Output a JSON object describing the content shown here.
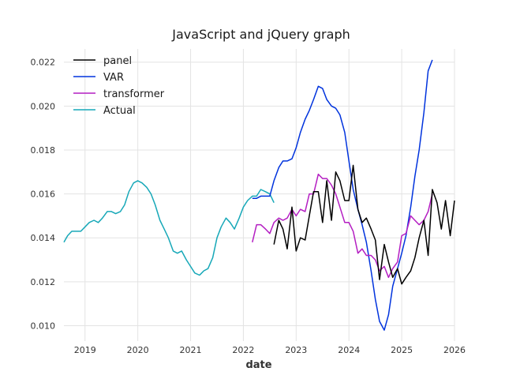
{
  "chart_data": {
    "type": "line",
    "title": "JavaScript and jQuery graph",
    "xlabel": "date",
    "ylabel": "",
    "xlim": [
      2018.6,
      2026.0
    ],
    "ylim": [
      0.0093,
      0.0226
    ],
    "x_ticks": [
      2019,
      2020,
      2021,
      2022,
      2023,
      2024,
      2025,
      2026
    ],
    "x_tick_labels": [
      "2019",
      "2020",
      "2021",
      "2022",
      "2023",
      "2024",
      "2025",
      "2026"
    ],
    "y_ticks": [
      0.01,
      0.012,
      0.014,
      0.016,
      0.018,
      0.02,
      0.022
    ],
    "y_tick_labels": [
      "0.010",
      "0.012",
      "0.014",
      "0.016",
      "0.018",
      "0.020",
      "0.022"
    ],
    "grid": true,
    "legend_position": "top-left",
    "series": [
      {
        "name": "panel",
        "color": "#000000",
        "x": [
          2022.58,
          2022.67,
          2022.75,
          2022.83,
          2022.92,
          2023.0,
          2023.08,
          2023.17,
          2023.25,
          2023.33,
          2023.42,
          2023.5,
          2023.58,
          2023.67,
          2023.75,
          2023.83,
          2023.92,
          2024.0,
          2024.08,
          2024.17,
          2024.25,
          2024.33,
          2024.42,
          2024.5,
          2024.58,
          2024.67,
          2024.75,
          2024.83,
          2024.92,
          2025.0,
          2025.08,
          2025.17,
          2025.25,
          2025.33,
          2025.42,
          2025.5,
          2025.58,
          2025.67,
          2025.75,
          2025.83,
          2025.92,
          2026.0
        ],
        "y": [
          0.0137,
          0.0148,
          0.0144,
          0.0135,
          0.0154,
          0.0134,
          0.014,
          0.0139,
          0.015,
          0.0161,
          0.0161,
          0.0147,
          0.0166,
          0.0148,
          0.017,
          0.0166,
          0.0157,
          0.0157,
          0.0173,
          0.0153,
          0.0147,
          0.0149,
          0.0144,
          0.0139,
          0.0121,
          0.0137,
          0.0129,
          0.0122,
          0.0126,
          0.0119,
          0.0122,
          0.0125,
          0.0131,
          0.014,
          0.0148,
          0.0132,
          0.0162,
          0.0156,
          0.0144,
          0.0157,
          0.0141,
          0.0157
        ]
      },
      {
        "name": "VAR",
        "color": "#0033dd",
        "x": [
          2022.17,
          2022.25,
          2022.33,
          2022.42,
          2022.5,
          2022.58,
          2022.67,
          2022.75,
          2022.83,
          2022.92,
          2023.0,
          2023.08,
          2023.17,
          2023.25,
          2023.33,
          2023.42,
          2023.5,
          2023.58,
          2023.67,
          2023.75,
          2023.83,
          2023.92,
          2024.0,
          2024.08,
          2024.17,
          2024.25,
          2024.33,
          2024.42,
          2024.5,
          2024.58,
          2024.67,
          2024.75,
          2024.83,
          2024.92,
          2025.0,
          2025.08,
          2025.17,
          2025.25,
          2025.33,
          2025.42,
          2025.5,
          2025.58
        ],
        "y": [
          0.0158,
          0.0158,
          0.0159,
          0.0159,
          0.0159,
          0.0166,
          0.0172,
          0.0175,
          0.0175,
          0.0176,
          0.0181,
          0.0188,
          0.0194,
          0.0198,
          0.0203,
          0.0209,
          0.0208,
          0.0203,
          0.02,
          0.0199,
          0.0196,
          0.0188,
          0.0175,
          0.0162,
          0.0153,
          0.0146,
          0.0138,
          0.0125,
          0.0112,
          0.0102,
          0.0098,
          0.0105,
          0.0118,
          0.0126,
          0.0133,
          0.0141,
          0.0154,
          0.0168,
          0.018,
          0.0197,
          0.0216,
          0.0221
        ]
      },
      {
        "name": "transformer",
        "color": "#b41ec2",
        "x": [
          2022.17,
          2022.25,
          2022.33,
          2022.42,
          2022.5,
          2022.58,
          2022.67,
          2022.75,
          2022.83,
          2022.92,
          2023.0,
          2023.08,
          2023.17,
          2023.25,
          2023.33,
          2023.42,
          2023.5,
          2023.58,
          2023.67,
          2023.75,
          2023.83,
          2023.92,
          2024.0,
          2024.08,
          2024.17,
          2024.25,
          2024.33,
          2024.42,
          2024.5,
          2024.58,
          2024.67,
          2024.75,
          2024.83,
          2024.92,
          2025.0,
          2025.08,
          2025.17,
          2025.25,
          2025.33,
          2025.42,
          2025.5,
          2025.58
        ],
        "y": [
          0.0138,
          0.0146,
          0.0146,
          0.0144,
          0.0142,
          0.0147,
          0.0149,
          0.0148,
          0.0149,
          0.0153,
          0.015,
          0.0153,
          0.0152,
          0.016,
          0.016,
          0.0169,
          0.0167,
          0.0167,
          0.0164,
          0.016,
          0.0154,
          0.0147,
          0.0147,
          0.0143,
          0.0133,
          0.0135,
          0.0132,
          0.0132,
          0.013,
          0.0125,
          0.0127,
          0.0122,
          0.0126,
          0.0129,
          0.0141,
          0.0142,
          0.015,
          0.0148,
          0.0146,
          0.0148,
          0.0152,
          0.016
        ]
      },
      {
        "name": "Actual",
        "color": "#17a8b8",
        "x": [
          2018.6,
          2018.67,
          2018.75,
          2018.83,
          2018.92,
          2019.0,
          2019.08,
          2019.17,
          2019.25,
          2019.33,
          2019.42,
          2019.5,
          2019.58,
          2019.67,
          2019.75,
          2019.83,
          2019.92,
          2020.0,
          2020.08,
          2020.17,
          2020.25,
          2020.33,
          2020.42,
          2020.5,
          2020.58,
          2020.67,
          2020.75,
          2020.83,
          2020.92,
          2021.0,
          2021.08,
          2021.17,
          2021.25,
          2021.33,
          2021.42,
          2021.5,
          2021.58,
          2021.67,
          2021.75,
          2021.83,
          2021.92,
          2022.0,
          2022.08,
          2022.17,
          2022.25,
          2022.33,
          2022.42,
          2022.5,
          2022.58
        ],
        "y": [
          0.0138,
          0.0141,
          0.0143,
          0.0143,
          0.0143,
          0.0145,
          0.0147,
          0.0148,
          0.0147,
          0.0149,
          0.0152,
          0.0152,
          0.0151,
          0.0152,
          0.0155,
          0.0161,
          0.0165,
          0.0166,
          0.0165,
          0.0163,
          0.016,
          0.0155,
          0.0148,
          0.0144,
          0.014,
          0.0134,
          0.0133,
          0.0134,
          0.013,
          0.0127,
          0.0124,
          0.0123,
          0.0125,
          0.0126,
          0.0131,
          0.014,
          0.0145,
          0.0149,
          0.0147,
          0.0144,
          0.0149,
          0.0154,
          0.0157,
          0.0159,
          0.0159,
          0.0162,
          0.0161,
          0.016,
          0.0156
        ]
      }
    ]
  }
}
